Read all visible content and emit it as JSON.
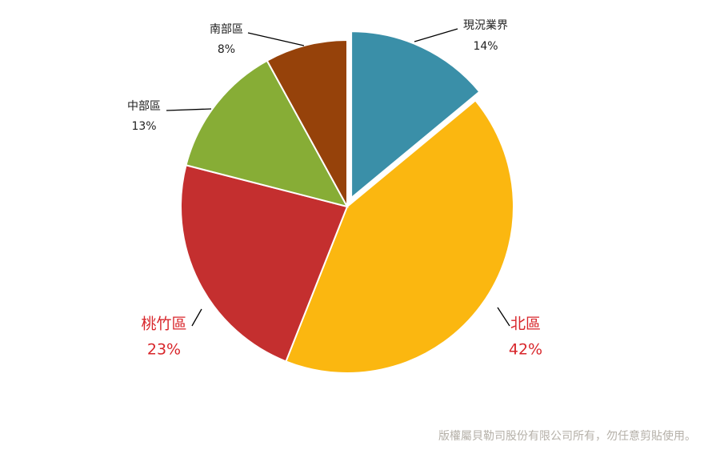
{
  "chart_data": {
    "type": "pie",
    "categories": [
      "現況業界",
      "北區",
      "桃竹區",
      "中部區",
      "南部區"
    ],
    "values": [
      14,
      42,
      23,
      13,
      8
    ],
    "value_labels": [
      "14%",
      "42%",
      "23%",
      "13%",
      "8%"
    ],
    "colors": [
      "#3a8fa8",
      "#fbb710",
      "#c42f2f",
      "#87ad36",
      "#96420a"
    ],
    "label_colors": [
      "#222222",
      "#d8262b",
      "#d8262b",
      "#222222",
      "#222222"
    ],
    "exploded": [
      true,
      false,
      false,
      false,
      false
    ]
  },
  "footer": "版權屬貝勒司股份有限公司所有，勿任意剪貼使用。"
}
